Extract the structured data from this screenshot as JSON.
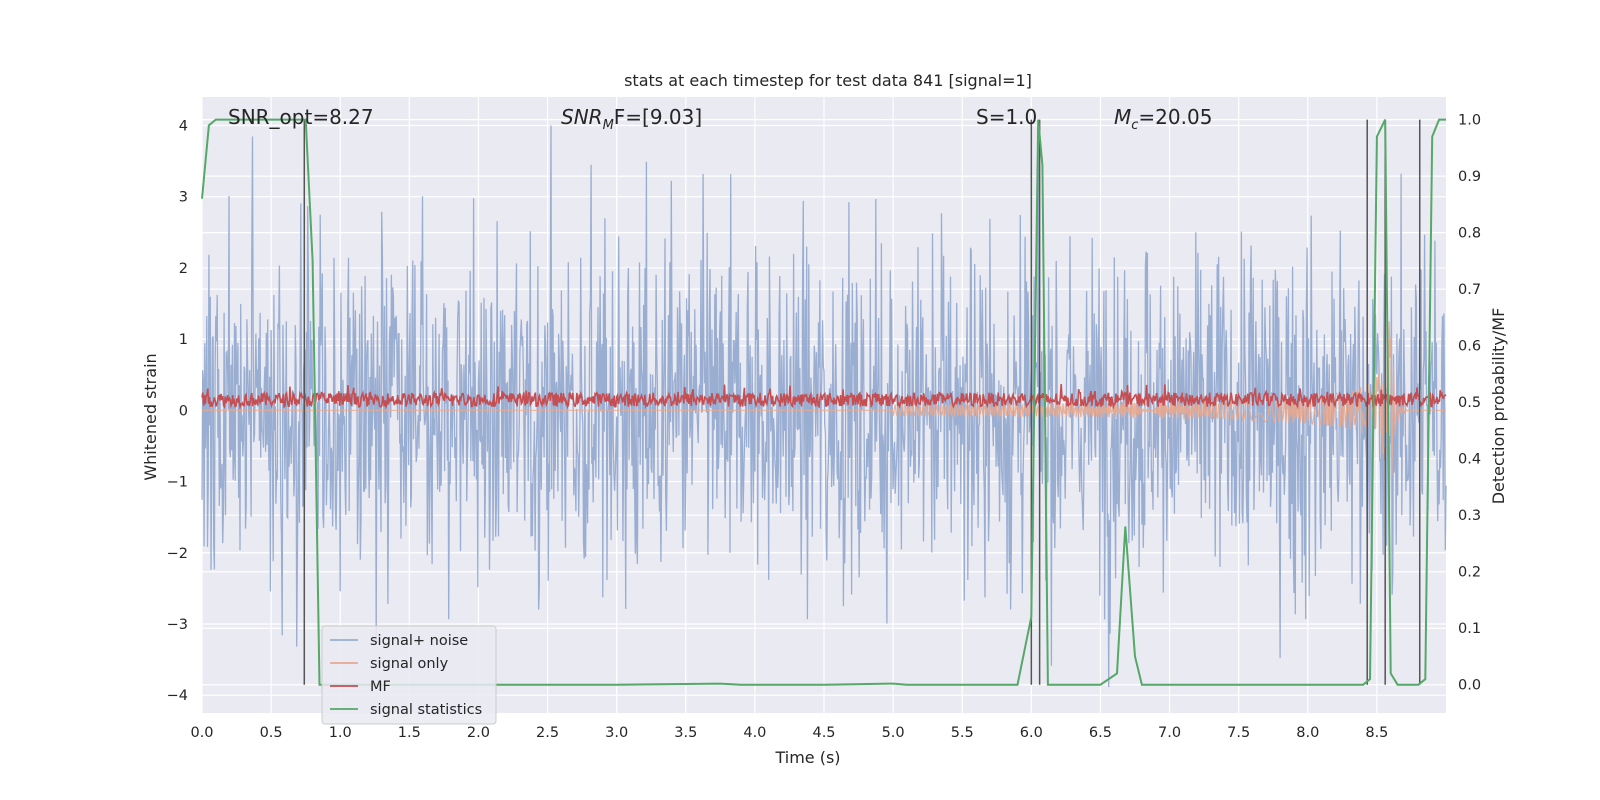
{
  "chart_data": {
    "type": "line",
    "title": "stats at each timestep for test data 841 [signal=1]",
    "xlabel": "Time (s)",
    "ylabel_left": "Whitened strain",
    "ylabel_right": "Detection probability/MF",
    "xlim": [
      0.0,
      9.0
    ],
    "ylim_left": [
      -4.25,
      4.4
    ],
    "ylim_right": [
      -0.05,
      1.04
    ],
    "x_ticks": [
      0.0,
      0.5,
      1.0,
      1.5,
      2.0,
      2.5,
      3.0,
      3.5,
      4.0,
      4.5,
      5.0,
      5.5,
      6.0,
      6.5,
      7.0,
      7.5,
      8.0,
      8.5
    ],
    "x_tick_labels": [
      "0.0",
      "0.5",
      "1.0",
      "1.5",
      "2.0",
      "2.5",
      "3.0",
      "3.5",
      "4.0",
      "4.5",
      "5.0",
      "5.5",
      "6.0",
      "6.5",
      "7.0",
      "7.5",
      "8.0",
      "8.5"
    ],
    "y_left_ticks": [
      -4,
      -3,
      -2,
      -1,
      0,
      1,
      2,
      3,
      4
    ],
    "y_left_tick_labels": [
      "−4",
      "−3",
      "−2",
      "−1",
      "0",
      "1",
      "2",
      "3",
      "4"
    ],
    "y_right_ticks": [
      0.0,
      0.1,
      0.2,
      0.3,
      0.4,
      0.5,
      0.6,
      0.7,
      0.8,
      0.9,
      1.0
    ],
    "y_right_tick_labels": [
      "0.0",
      "0.1",
      "0.2",
      "0.3",
      "0.4",
      "0.5",
      "0.6",
      "0.7",
      "0.8",
      "0.9",
      "1.0"
    ],
    "grid": true,
    "legend_position": "lower-left",
    "annotations": {
      "snr_opt": "SNR_opt=8.27",
      "snr_mf_prefix": "SNR",
      "snr_mf_sub": "M",
      "snr_mf_suffix": "F=[9.03]",
      "stat": "S=1.0",
      "mc_prefix": "M",
      "mc_sub": "c",
      "mc_suffix": "=20.05"
    },
    "series": [
      {
        "name": "signal+ noise",
        "color": "#9aaed2",
        "axis": "left",
        "description_values": {
          "typical_range": [
            -2.3,
            2.3
          ],
          "extremes": [
            -3.9,
            4.0
          ]
        }
      },
      {
        "name": "signal only",
        "color": "#e8a88f",
        "axis": "left",
        "chirp": {
          "start": 5.0,
          "peak_time": 8.6,
          "peak_amplitude": 1.7,
          "min_amplitude": -1.9
        }
      },
      {
        "name": "MF",
        "color": "#c44e52",
        "axis": "left",
        "baseline": 0.15,
        "typical_range": [
          0.0,
          0.35
        ]
      },
      {
        "name": "signal statistics",
        "color": "#55a868",
        "axis": "right",
        "x": [
          0.0,
          0.05,
          0.1,
          0.2,
          0.3,
          0.4,
          0.5,
          0.6,
          0.7,
          0.75,
          0.8,
          0.85,
          1.0,
          1.5,
          2.0,
          3.0,
          3.75,
          3.9,
          4.5,
          5.0,
          5.1,
          5.5,
          5.9,
          6.0,
          6.05,
          6.08,
          6.12,
          6.2,
          6.3,
          6.5,
          6.62,
          6.68,
          6.75,
          6.8,
          7.0,
          8.0,
          8.4,
          8.45,
          8.5,
          8.56,
          8.6,
          8.65,
          8.7,
          8.8,
          8.85,
          8.9,
          8.95,
          9.0
        ],
        "y": [
          0.86,
          0.99,
          1.0,
          1.0,
          1.0,
          1.0,
          1.0,
          1.0,
          1.0,
          1.0,
          0.75,
          0.0,
          0.0,
          0.0,
          0.0,
          0.0,
          0.002,
          0.0,
          0.0,
          0.002,
          0.0,
          0.0,
          0.0,
          0.12,
          1.0,
          0.92,
          0.0,
          0.0,
          0.0,
          0.0,
          0.02,
          0.28,
          0.05,
          0.0,
          0.0,
          0.0,
          0.0,
          0.01,
          0.97,
          1.0,
          0.02,
          0.0,
          0.0,
          0.0,
          0.01,
          0.97,
          1.0,
          1.0
        ]
      }
    ],
    "vertical_markers": [
      0.74,
      6.0,
      6.06,
      8.43,
      8.56,
      8.81
    ]
  }
}
